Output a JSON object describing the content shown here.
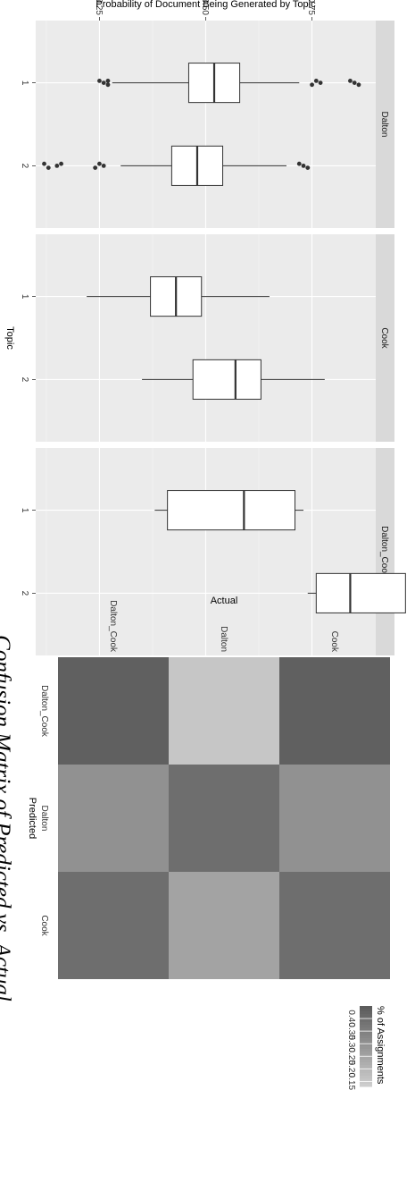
{
  "chart_data": [
    {
      "type": "box",
      "ylabel": "Probability of Document Being Generated by Topic",
      "xlabel": "Topic",
      "facets": [
        "Dalton",
        "Cook",
        "Dalton_Cook"
      ],
      "categories": [
        "1",
        "2"
      ],
      "y_ticks": [
        0.75,
        0.5,
        0.25
      ],
      "ylim": [
        0.1,
        0.9
      ],
      "boxes": [
        {
          "facet": "Dalton",
          "topic": "1",
          "whisker_low": 0.28,
          "q1": 0.46,
          "median": 0.52,
          "q3": 0.58,
          "whisker_high": 0.72,
          "outliers": [
            0.76,
            0.77,
            0.75,
            0.84,
            0.85,
            0.86,
            0.27,
            0.26,
            0.27,
            0.25
          ]
        },
        {
          "facet": "Dalton",
          "topic": "2",
          "whisker_low": 0.3,
          "q1": 0.42,
          "median": 0.48,
          "q3": 0.54,
          "whisker_high": 0.69,
          "outliers": [
            0.72,
            0.73,
            0.74,
            0.25,
            0.26,
            0.24,
            0.16,
            0.15,
            0.13,
            0.12
          ]
        },
        {
          "facet": "Cook",
          "topic": "1",
          "whisker_low": 0.22,
          "q1": 0.37,
          "median": 0.43,
          "q3": 0.49,
          "whisker_high": 0.65
        },
        {
          "facet": "Cook",
          "topic": "2",
          "whisker_low": 0.35,
          "q1": 0.47,
          "median": 0.57,
          "q3": 0.63,
          "whisker_high": 0.78
        },
        {
          "facet": "Dalton_Cook",
          "topic": "1",
          "whisker_low": 0.38,
          "q1": 0.41,
          "median": 0.59,
          "q3": 0.71,
          "whisker_high": 0.73
        },
        {
          "facet": "Dalton_Cook",
          "topic": "2",
          "whisker_low": 0.74,
          "q1": 0.76,
          "median": 0.84,
          "q3": 0.97,
          "whisker_high": 0.97
        }
      ],
      "grid": true
    },
    {
      "type": "heatmap",
      "title": "Confusion Matrix of Predicted vs. Actual",
      "xlabel": "Predicted",
      "ylabel": "Actual",
      "x_categories": [
        "Cook",
        "Dalton",
        "Dalton_Cook"
      ],
      "y_categories": [
        "Dalton_Cook",
        "Dalton",
        "Cook"
      ],
      "values": [
        [
          0.44,
          0.15,
          0.44
        ],
        [
          0.3,
          0.4,
          0.3
        ],
        [
          0.4,
          0.25,
          0.4
        ]
      ],
      "legend_title": "% of Assignments",
      "legend_ticks": [
        0.4,
        0.35,
        0.3,
        0.25,
        0.2,
        0.15
      ],
      "legend_range": [
        0.13,
        0.45
      ],
      "legend_placement": "right"
    }
  ]
}
